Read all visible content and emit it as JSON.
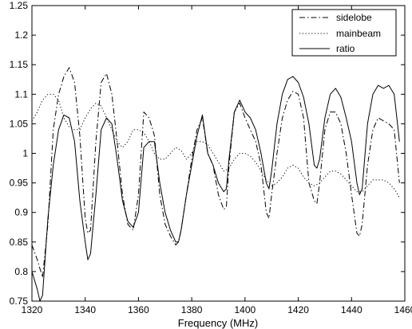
{
  "chart_data": {
    "type": "line",
    "title": "",
    "xlabel": "Frequency (MHz)",
    "ylabel": "",
    "xlim": [
      1320,
      1460
    ],
    "ylim": [
      0.75,
      1.25
    ],
    "xticks": [
      "1320",
      "1340",
      "1360",
      "1380",
      "1400",
      "1420",
      "1440",
      "1460"
    ],
    "yticks": [
      "0.75",
      "0.8",
      "0.85",
      "0.9",
      "0.95",
      "1",
      "1.05",
      "1.1",
      "1.15",
      "1.2",
      "1.25"
    ],
    "grid": false,
    "legend_position": "top-right",
    "series": [
      {
        "name": "sidelobe",
        "style": "dashdot",
        "color": "#000000",
        "x": [
          1320,
          1322,
          1324,
          1326,
          1328,
          1330,
          1332,
          1334,
          1336,
          1338,
          1340,
          1341,
          1342,
          1344,
          1346,
          1348,
          1350,
          1352,
          1354,
          1356,
          1358,
          1360,
          1362,
          1364,
          1366,
          1368,
          1370,
          1372,
          1374,
          1375,
          1376,
          1378,
          1380,
          1382,
          1384,
          1386,
          1388,
          1390,
          1392,
          1393,
          1394,
          1396,
          1398,
          1400,
          1402,
          1404,
          1406,
          1408,
          1409,
          1410,
          1412,
          1414,
          1416,
          1418,
          1420,
          1422,
          1424,
          1426,
          1427,
          1428,
          1430,
          1432,
          1434,
          1436,
          1438,
          1440,
          1442,
          1443,
          1444,
          1446,
          1448,
          1450,
          1452,
          1454,
          1456,
          1458
        ],
        "values": [
          0.845,
          0.82,
          0.79,
          0.88,
          1.04,
          1.1,
          1.13,
          1.145,
          1.12,
          1.03,
          0.89,
          0.865,
          0.87,
          1.02,
          1.12,
          1.135,
          1.1,
          1.02,
          0.93,
          0.88,
          0.87,
          0.93,
          1.07,
          1.06,
          1.03,
          0.93,
          0.88,
          0.86,
          0.845,
          0.85,
          0.87,
          0.93,
          0.99,
          1.04,
          1.06,
          1.0,
          0.98,
          0.93,
          0.905,
          0.91,
          0.98,
          1.07,
          1.085,
          1.06,
          1.04,
          1.02,
          0.98,
          0.9,
          0.89,
          0.93,
          1.0,
          1.06,
          1.09,
          1.105,
          1.1,
          1.06,
          0.95,
          0.92,
          0.915,
          0.95,
          1.04,
          1.07,
          1.07,
          1.05,
          1.0,
          0.93,
          0.865,
          0.86,
          0.88,
          0.98,
          1.04,
          1.06,
          1.055,
          1.05,
          1.04,
          0.95
        ]
      },
      {
        "name": "mainbeam",
        "style": "dotted",
        "color": "#000000",
        "x": [
          1320,
          1322,
          1324,
          1326,
          1328,
          1330,
          1332,
          1334,
          1336,
          1338,
          1340,
          1342,
          1344,
          1346,
          1348,
          1350,
          1352,
          1354,
          1356,
          1358,
          1360,
          1362,
          1364,
          1366,
          1368,
          1370,
          1372,
          1374,
          1376,
          1378,
          1380,
          1382,
          1384,
          1386,
          1388,
          1390,
          1392,
          1394,
          1396,
          1398,
          1400,
          1402,
          1404,
          1406,
          1408,
          1410,
          1412,
          1414,
          1416,
          1418,
          1420,
          1422,
          1424,
          1426,
          1428,
          1430,
          1432,
          1434,
          1436,
          1438,
          1440,
          1442,
          1444,
          1446,
          1448,
          1450,
          1452,
          1454,
          1456,
          1458
        ],
        "values": [
          1.055,
          1.07,
          1.09,
          1.1,
          1.1,
          1.09,
          1.06,
          1.045,
          1.04,
          1.04,
          1.06,
          1.075,
          1.085,
          1.08,
          1.06,
          1.04,
          1.02,
          1.01,
          1.02,
          1.04,
          1.04,
          1.035,
          1.02,
          1.0,
          0.99,
          0.99,
          1.0,
          1.01,
          1.005,
          0.99,
          1.0,
          1.02,
          1.02,
          1.015,
          1.0,
          0.985,
          0.97,
          0.975,
          0.99,
          1.0,
          1.0,
          0.995,
          0.985,
          0.97,
          0.955,
          0.945,
          0.95,
          0.96,
          0.975,
          0.98,
          0.975,
          0.96,
          0.95,
          0.945,
          0.95,
          0.96,
          0.97,
          0.97,
          0.965,
          0.955,
          0.945,
          0.935,
          0.935,
          0.945,
          0.955,
          0.955,
          0.955,
          0.95,
          0.94,
          0.925
        ]
      },
      {
        "name": "ratio",
        "style": "solid",
        "color": "#000000",
        "x": [
          1320,
          1322,
          1323,
          1324,
          1326,
          1328,
          1330,
          1332,
          1334,
          1336,
          1338,
          1340,
          1341,
          1342,
          1344,
          1346,
          1348,
          1350,
          1352,
          1354,
          1356,
          1358,
          1360,
          1362,
          1364,
          1366,
          1368,
          1370,
          1372,
          1374,
          1375,
          1376,
          1378,
          1380,
          1382,
          1384,
          1386,
          1388,
          1390,
          1392,
          1393,
          1394,
          1396,
          1398,
          1400,
          1402,
          1404,
          1406,
          1408,
          1409,
          1410,
          1412,
          1414,
          1416,
          1418,
          1420,
          1422,
          1424,
          1426,
          1427,
          1428,
          1430,
          1432,
          1434,
          1436,
          1438,
          1440,
          1442,
          1443,
          1444,
          1446,
          1448,
          1450,
          1452,
          1454,
          1456,
          1458
        ],
        "values": [
          0.8,
          0.77,
          0.75,
          0.76,
          0.89,
          0.98,
          1.04,
          1.065,
          1.06,
          1.02,
          0.92,
          0.85,
          0.82,
          0.83,
          0.93,
          1.04,
          1.06,
          1.05,
          0.99,
          0.92,
          0.885,
          0.875,
          0.9,
          1.01,
          1.02,
          1.02,
          0.95,
          0.9,
          0.87,
          0.85,
          0.85,
          0.87,
          0.93,
          0.98,
          1.03,
          1.065,
          1.0,
          0.98,
          0.95,
          0.935,
          0.94,
          0.99,
          1.07,
          1.09,
          1.07,
          1.06,
          1.04,
          1.0,
          0.95,
          0.94,
          0.97,
          1.05,
          1.1,
          1.125,
          1.13,
          1.12,
          1.095,
          1.05,
          0.98,
          0.975,
          0.99,
          1.06,
          1.1,
          1.11,
          1.095,
          1.06,
          1.02,
          0.95,
          0.93,
          0.94,
          1.05,
          1.1,
          1.115,
          1.11,
          1.115,
          1.1,
          1.02
        ]
      }
    ]
  }
}
